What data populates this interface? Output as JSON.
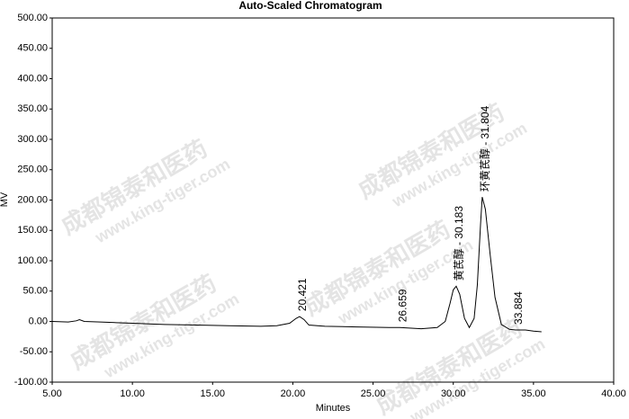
{
  "chart_data": {
    "type": "line",
    "title": "Auto-Scaled Chromatogram",
    "x_label": "Minutes",
    "y_label": "MV",
    "watermark": [
      "成都锦泰和医药",
      "www.king-tiger.com"
    ],
    "xlim": [
      5,
      40
    ],
    "xticks": [
      {
        "value": 5,
        "label": "5.00"
      },
      {
        "value": 10,
        "label": "10.00"
      },
      {
        "value": 15,
        "label": "15.00"
      },
      {
        "value": 20,
        "label": "20.00"
      },
      {
        "value": 25,
        "label": "25.00"
      },
      {
        "value": 30,
        "label": "30.00"
      },
      {
        "value": 35,
        "label": "35.00"
      },
      {
        "value": 40,
        "label": "40.00"
      }
    ],
    "ylim": [
      -100,
      500
    ],
    "yticks": [
      {
        "value": -100,
        "label": "-100.00"
      },
      {
        "value": -50,
        "label": "-50.00"
      },
      {
        "value": 0,
        "label": "0.00"
      },
      {
        "value": 50,
        "label": "50.00"
      },
      {
        "value": 100,
        "label": "100.00"
      },
      {
        "value": 150,
        "label": "150.00"
      },
      {
        "value": 200,
        "label": "200.00"
      },
      {
        "value": 250,
        "label": "250.00"
      },
      {
        "value": 300,
        "label": "300.00"
      },
      {
        "value": 350,
        "label": "350.00"
      },
      {
        "value": 400,
        "label": "400.00"
      },
      {
        "value": 450,
        "label": "450.00"
      },
      {
        "value": 500,
        "label": "500.00"
      }
    ],
    "x": [
      5,
      6,
      6.5,
      6.7,
      7,
      8,
      9,
      10,
      12,
      14,
      16,
      18,
      19,
      19.8,
      20.2,
      20.421,
      20.7,
      21,
      22,
      24,
      26,
      26.659,
      28,
      29,
      29.5,
      29.8,
      30,
      30.183,
      30.4,
      30.7,
      31,
      31.3,
      31.5,
      31.7,
      31.804,
      32,
      32.3,
      32.6,
      33,
      33.5,
      33.884,
      34.5,
      35,
      35.5
    ],
    "series": [
      {
        "name": "MV",
        "color": "#000000",
        "values": [
          0,
          -1,
          1,
          3,
          0,
          -1,
          -2,
          -3,
          -5,
          -6,
          -7,
          -8,
          -7,
          -3,
          5,
          8,
          3,
          -6,
          -8,
          -9,
          -10,
          -10,
          -12,
          -10,
          0,
          30,
          52,
          58,
          45,
          5,
          -10,
          5,
          60,
          160,
          205,
          185,
          110,
          40,
          -5,
          -13,
          -14,
          -14,
          -16,
          -17
        ]
      }
    ],
    "annotations": [
      {
        "x": 20.421,
        "label": "20.421"
      },
      {
        "x": 26.659,
        "label": "26.659"
      },
      {
        "x": 30.183,
        "label": "黄芪醇 - 30.183"
      },
      {
        "x": 31.804,
        "label": "环黄芪醇 - 31.804"
      },
      {
        "x": 33.884,
        "label": "33.884"
      }
    ]
  }
}
